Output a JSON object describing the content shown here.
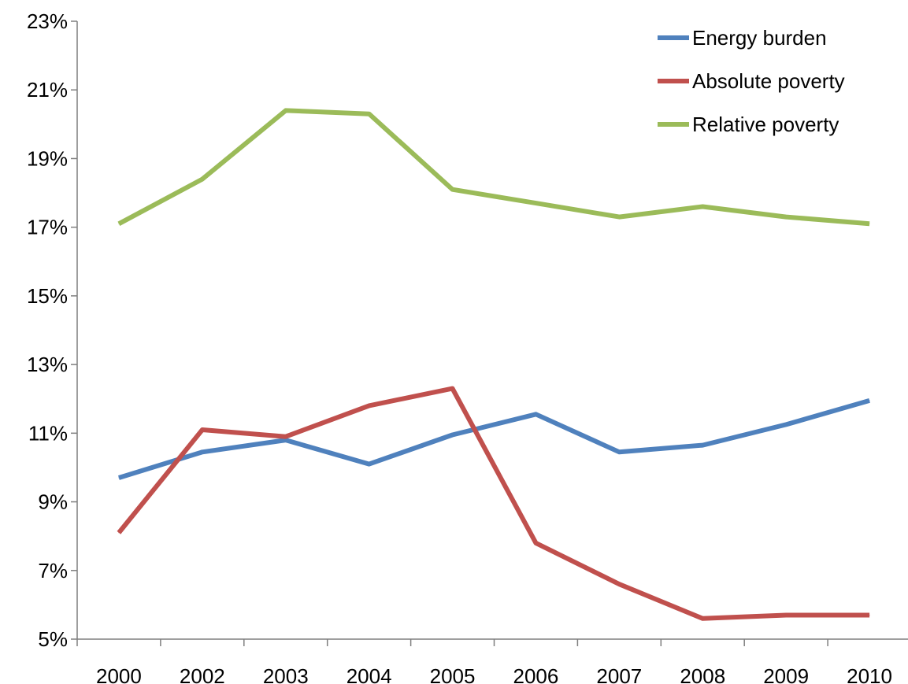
{
  "chart_data": {
    "type": "line",
    "title": "",
    "xlabel": "",
    "ylabel": "",
    "categories": [
      "2000",
      "2002",
      "2003",
      "2004",
      "2005",
      "2006",
      "2007",
      "2008",
      "2009",
      "2010"
    ],
    "ylim": [
      5,
      23
    ],
    "y_ticks": [
      5,
      7,
      9,
      11,
      13,
      15,
      17,
      19,
      21,
      23
    ],
    "y_tick_labels": [
      "5%",
      "7%",
      "9%",
      "11%",
      "13%",
      "15%",
      "17%",
      "19%",
      "21%",
      "23%"
    ],
    "grid": false,
    "legend_position": "top-right",
    "series": [
      {
        "name": "Energy burden",
        "color": "#4f81bd",
        "values": [
          9.7,
          10.45,
          10.8,
          10.1,
          10.95,
          11.55,
          10.45,
          10.65,
          11.25,
          11.95
        ]
      },
      {
        "name": "Absolute poverty",
        "color": "#c0504d",
        "values": [
          8.1,
          11.1,
          10.9,
          11.8,
          12.3,
          7.8,
          6.6,
          5.6,
          5.7,
          5.7
        ]
      },
      {
        "name": "Relative poverty",
        "color": "#9bbb59",
        "values": [
          17.1,
          18.4,
          20.4,
          20.3,
          18.1,
          17.7,
          17.3,
          17.6,
          17.3,
          17.1
        ]
      }
    ]
  }
}
